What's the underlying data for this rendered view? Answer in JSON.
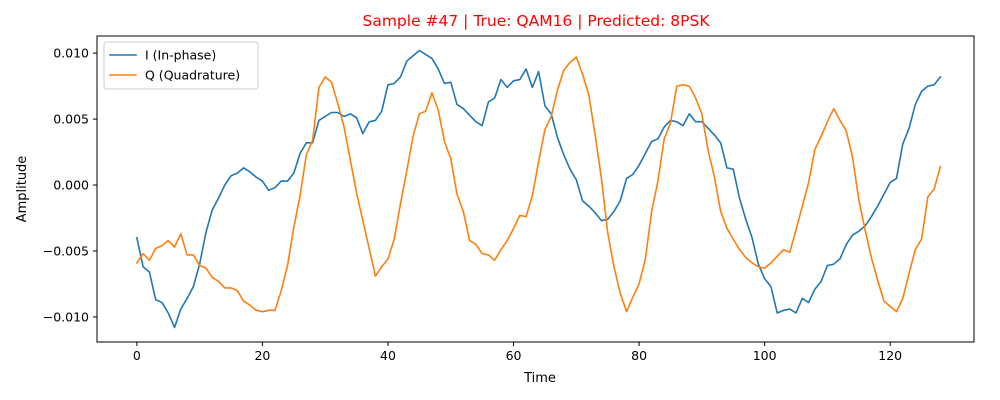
{
  "chart_data": {
    "type": "line",
    "title": "Sample #47 | True: QAM16 | Predicted: 8PSK",
    "title_color": "#ff0000",
    "xlabel": "Time",
    "ylabel": "Amplitude",
    "xlim": [
      -6.35,
      133.35
    ],
    "ylim": [
      -0.0119,
      0.0113
    ],
    "xticks": [
      0,
      20,
      40,
      60,
      80,
      100,
      120
    ],
    "xtick_labels": [
      "0",
      "20",
      "40",
      "60",
      "80",
      "100",
      "120"
    ],
    "yticks": [
      -0.01,
      -0.005,
      0.0,
      0.005,
      0.01
    ],
    "ytick_labels": [
      "−0.010",
      "−0.005",
      "0.000",
      "0.005",
      "0.010"
    ],
    "grid": false,
    "legend_position": "upper-left",
    "series": [
      {
        "name": "I (In-phase)",
        "color": "#1f77b4",
        "values": [
          -0.004,
          -0.0062,
          -0.0066,
          -0.0087,
          -0.0089,
          -0.0097,
          -0.0108,
          -0.0094,
          -0.0086,
          -0.0077,
          -0.006,
          -0.0036,
          -0.0019,
          -0.001,
          0.0,
          0.0007,
          0.0009,
          0.0013,
          0.001,
          0.0006,
          0.0003,
          -0.0004,
          -0.0002,
          0.0003,
          0.0003,
          0.0009,
          0.0024,
          0.0032,
          0.0032,
          0.0049,
          0.0052,
          0.0055,
          0.0055,
          0.0052,
          0.0054,
          0.0051,
          0.0039,
          0.0048,
          0.0049,
          0.0056,
          0.0076,
          0.0077,
          0.0082,
          0.0094,
          0.0098,
          0.0102,
          0.0099,
          0.0096,
          0.0088,
          0.0077,
          0.0078,
          0.0061,
          0.0058,
          0.0053,
          0.0048,
          0.0045,
          0.0063,
          0.0066,
          0.008,
          0.0074,
          0.0079,
          0.008,
          0.0088,
          0.0074,
          0.0086,
          0.006,
          0.0054,
          0.0036,
          0.0023,
          0.0012,
          0.0004,
          -0.0012,
          -0.0016,
          -0.0021,
          -0.0027,
          -0.0026,
          -0.002,
          -0.0012,
          0.0005,
          0.0008,
          0.0015,
          0.0024,
          0.0033,
          0.0035,
          0.0044,
          0.0049,
          0.0048,
          0.0045,
          0.0054,
          0.0048,
          0.0048,
          0.0043,
          0.0038,
          0.0032,
          0.0013,
          0.0012,
          -0.001,
          -0.0026,
          -0.004,
          -0.006,
          -0.0071,
          -0.0077,
          -0.0097,
          -0.0095,
          -0.0094,
          -0.0097,
          -0.0086,
          -0.0089,
          -0.0079,
          -0.0073,
          -0.0061,
          -0.006,
          -0.0056,
          -0.0045,
          -0.0038,
          -0.0035,
          -0.0031,
          -0.0024,
          -0.0016,
          -0.0007,
          0.0002,
          0.0005,
          0.0031,
          0.0043,
          0.0061,
          0.0071,
          0.0075,
          0.0076,
          0.0082
        ]
      },
      {
        "name": "Q (Quadrature)",
        "color": "#ff7f0e",
        "values": [
          -0.0059,
          -0.0052,
          -0.0057,
          -0.0048,
          -0.0046,
          -0.0042,
          -0.0047,
          -0.0037,
          -0.0053,
          -0.0053,
          -0.0061,
          -0.0063,
          -0.007,
          -0.0073,
          -0.0078,
          -0.0078,
          -0.008,
          -0.0088,
          -0.0091,
          -0.0095,
          -0.0096,
          -0.0095,
          -0.0095,
          -0.008,
          -0.0061,
          -0.0032,
          -0.0008,
          0.0023,
          0.0034,
          0.0074,
          0.0082,
          0.0078,
          0.0062,
          0.0044,
          0.0019,
          -0.0006,
          -0.0027,
          -0.0048,
          -0.0069,
          -0.0062,
          -0.0056,
          -0.0041,
          -0.0014,
          0.0011,
          0.0037,
          0.0054,
          0.0056,
          0.007,
          0.0057,
          0.0033,
          0.002,
          -0.0007,
          -0.002,
          -0.0042,
          -0.0045,
          -0.0052,
          -0.0053,
          -0.0057,
          -0.0049,
          -0.0042,
          -0.0033,
          -0.0023,
          -0.0024,
          -0.0008,
          0.0018,
          0.0042,
          0.0052,
          0.0072,
          0.0087,
          0.0093,
          0.0097,
          0.0084,
          0.0068,
          0.0038,
          0.0005,
          -0.0036,
          -0.0062,
          -0.0082,
          -0.0096,
          -0.0085,
          -0.0075,
          -0.0056,
          -0.002,
          0.0003,
          0.0035,
          0.0047,
          0.0075,
          0.0076,
          0.0075,
          0.0066,
          0.0054,
          0.0026,
          0.0006,
          -0.002,
          -0.0033,
          -0.0041,
          -0.0049,
          -0.0055,
          -0.0059,
          -0.0062,
          -0.0063,
          -0.0059,
          -0.0054,
          -0.0049,
          -0.0051,
          -0.0034,
          -0.0016,
          0.0002,
          0.0027,
          0.0037,
          0.0048,
          0.0058,
          0.0049,
          0.0041,
          0.0021,
          -0.0011,
          -0.0034,
          -0.0055,
          -0.0072,
          -0.0088,
          -0.0092,
          -0.0096,
          -0.0086,
          -0.0067,
          -0.0049,
          -0.0041,
          -0.0009,
          -0.0003,
          0.0014
        ]
      }
    ]
  }
}
